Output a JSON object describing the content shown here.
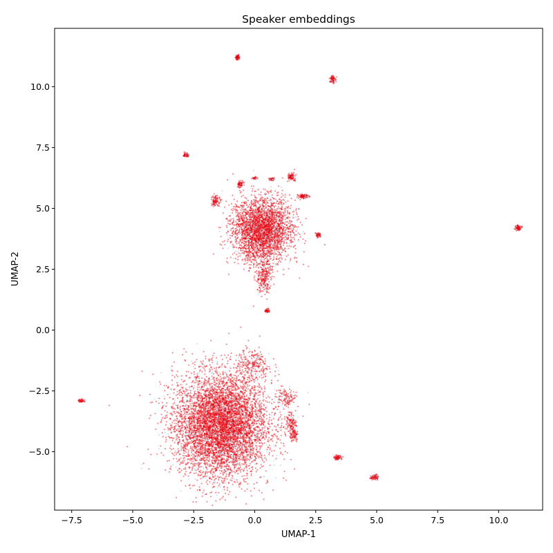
{
  "chart_data": {
    "type": "scatter",
    "title": "Speaker embeddings",
    "xlabel": "UMAP-1",
    "ylabel": "UMAP-2",
    "xlim": [
      -8.2,
      11.8
    ],
    "ylim": [
      -7.4,
      12.4
    ],
    "xticks": [
      -7.5,
      -5.0,
      -2.5,
      0.0,
      2.5,
      5.0,
      7.5,
      10.0
    ],
    "xtick_labels": [
      "−7.5",
      "−5.0",
      "−2.5",
      "0.0",
      "2.5",
      "5.0",
      "7.5",
      "10.0"
    ],
    "yticks": [
      -5.0,
      -2.5,
      0.0,
      2.5,
      5.0,
      7.5,
      10.0
    ],
    "ytick_labels": [
      "−5.0",
      "−2.5",
      "0.0",
      "2.5",
      "5.0",
      "7.5",
      "10.0"
    ],
    "grid": false,
    "legend": "none",
    "point_colors": [
      "#e8000b",
      "#a6cee3"
    ],
    "clusters": [
      {
        "center": [
          -1.4,
          -3.9
        ],
        "spread": [
          0.95,
          1.05
        ],
        "points": 6500
      },
      {
        "center": [
          0.3,
          4.1
        ],
        "spread": [
          0.6,
          0.65
        ],
        "points": 3200
      },
      {
        "center": [
          0.4,
          2.2
        ],
        "spread": [
          0.15,
          0.35
        ],
        "points": 250
      },
      {
        "center": [
          -0.1,
          -1.4
        ],
        "spread": [
          0.35,
          0.3
        ],
        "points": 250
      },
      {
        "center": [
          1.3,
          -2.8
        ],
        "spread": [
          0.2,
          0.2
        ],
        "points": 120
      },
      {
        "center": [
          1.5,
          -3.8
        ],
        "spread": [
          0.12,
          0.2
        ],
        "points": 120
      },
      {
        "center": [
          1.6,
          -4.3
        ],
        "spread": [
          0.08,
          0.12
        ],
        "points": 80
      },
      {
        "center": [
          -0.7,
          11.2
        ],
        "spread": [
          0.04,
          0.05
        ],
        "points": 80
      },
      {
        "center": [
          3.2,
          10.3
        ],
        "spread": [
          0.05,
          0.08
        ],
        "points": 100
      },
      {
        "center": [
          -2.8,
          7.2
        ],
        "spread": [
          0.05,
          0.05
        ],
        "points": 60
      },
      {
        "center": [
          -1.6,
          5.3
        ],
        "spread": [
          0.08,
          0.1
        ],
        "points": 100
      },
      {
        "center": [
          -0.6,
          6.0
        ],
        "spread": [
          0.06,
          0.06
        ],
        "points": 80
      },
      {
        "center": [
          1.5,
          6.3
        ],
        "spread": [
          0.07,
          0.07
        ],
        "points": 100
      },
      {
        "center": [
          2.0,
          5.5
        ],
        "spread": [
          0.1,
          0.05
        ],
        "points": 100
      },
      {
        "center": [
          2.6,
          3.9
        ],
        "spread": [
          0.05,
          0.05
        ],
        "points": 60
      },
      {
        "center": [
          0.7,
          6.2
        ],
        "spread": [
          0.05,
          0.03
        ],
        "points": 40
      },
      {
        "center": [
          0.0,
          6.25
        ],
        "spread": [
          0.05,
          0.03
        ],
        "points": 30
      },
      {
        "center": [
          0.5,
          0.8
        ],
        "spread": [
          0.05,
          0.05
        ],
        "points": 40
      },
      {
        "center": [
          10.8,
          4.2
        ],
        "spread": [
          0.06,
          0.05
        ],
        "points": 80
      },
      {
        "center": [
          -7.1,
          -2.9
        ],
        "spread": [
          0.06,
          0.03
        ],
        "points": 50
      },
      {
        "center": [
          3.4,
          -5.25
        ],
        "spread": [
          0.08,
          0.05
        ],
        "points": 70
      },
      {
        "center": [
          4.9,
          -6.05
        ],
        "spread": [
          0.08,
          0.05
        ],
        "points": 90
      }
    ]
  }
}
